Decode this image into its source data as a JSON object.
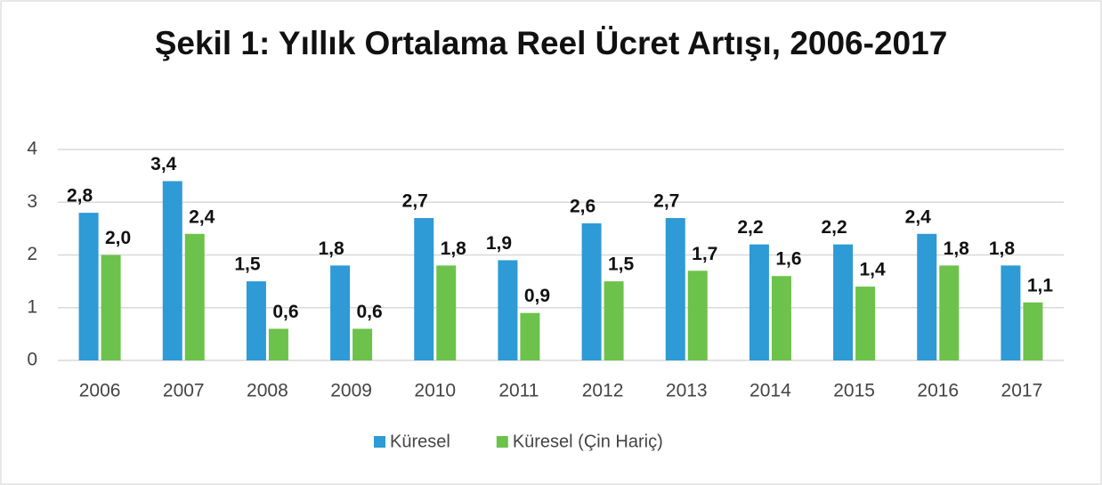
{
  "chart_data": {
    "type": "bar",
    "title": "Şekil 1: Yıllık Ortalama Reel Ücret Artışı, 2006-2017",
    "categories": [
      "2006",
      "2007",
      "2008",
      "2009",
      "2010",
      "2011",
      "2012",
      "2013",
      "2014",
      "2015",
      "2016",
      "2017"
    ],
    "series": [
      {
        "name": "Küresel",
        "color": "#2e9ad6",
        "values": [
          2.8,
          3.4,
          1.5,
          1.8,
          2.7,
          1.9,
          2.6,
          2.7,
          2.2,
          2.2,
          2.4,
          1.8
        ],
        "value_labels": [
          "2,8",
          "3,4",
          "1,5",
          "1,8",
          "2,7",
          "1,9",
          "2,6",
          "2,7",
          "2,2",
          "2,2",
          "2,4",
          "1,8"
        ]
      },
      {
        "name": "Küresel (Çin Hariç)",
        "color": "#6cc24a",
        "values": [
          2.0,
          2.4,
          0.6,
          0.6,
          1.8,
          0.9,
          1.5,
          1.7,
          1.6,
          1.4,
          1.8,
          1.1
        ],
        "value_labels": [
          "2,0",
          "2,4",
          "0,6",
          "0,6",
          "1,8",
          "0,9",
          "1,5",
          "1,7",
          "1,6",
          "1,4",
          "1,8",
          "1,1"
        ]
      }
    ],
    "ylim": [
      0,
      4
    ],
    "yticks": [
      0,
      1,
      2,
      3,
      4
    ],
    "grid": true,
    "legend": "bottom"
  }
}
